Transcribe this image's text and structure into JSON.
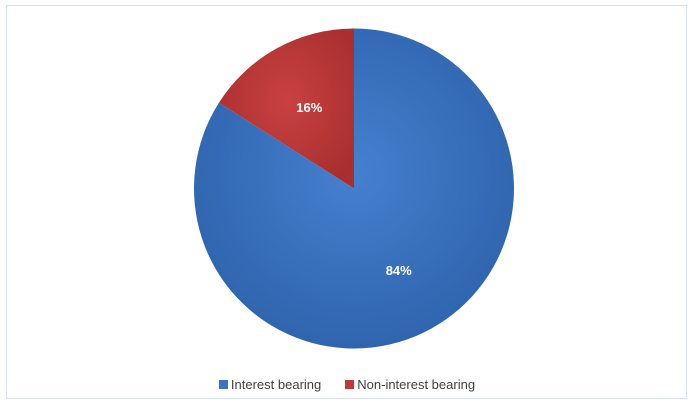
{
  "chart_data": {
    "type": "pie",
    "slices": [
      {
        "label": "Interest bearing",
        "value": 84,
        "display": "84%",
        "color": "#3a72c4"
      },
      {
        "label": "Non-interest bearing",
        "value": 16,
        "display": "16%",
        "color": "#c0393a"
      }
    ],
    "legend_position": "bottom"
  }
}
